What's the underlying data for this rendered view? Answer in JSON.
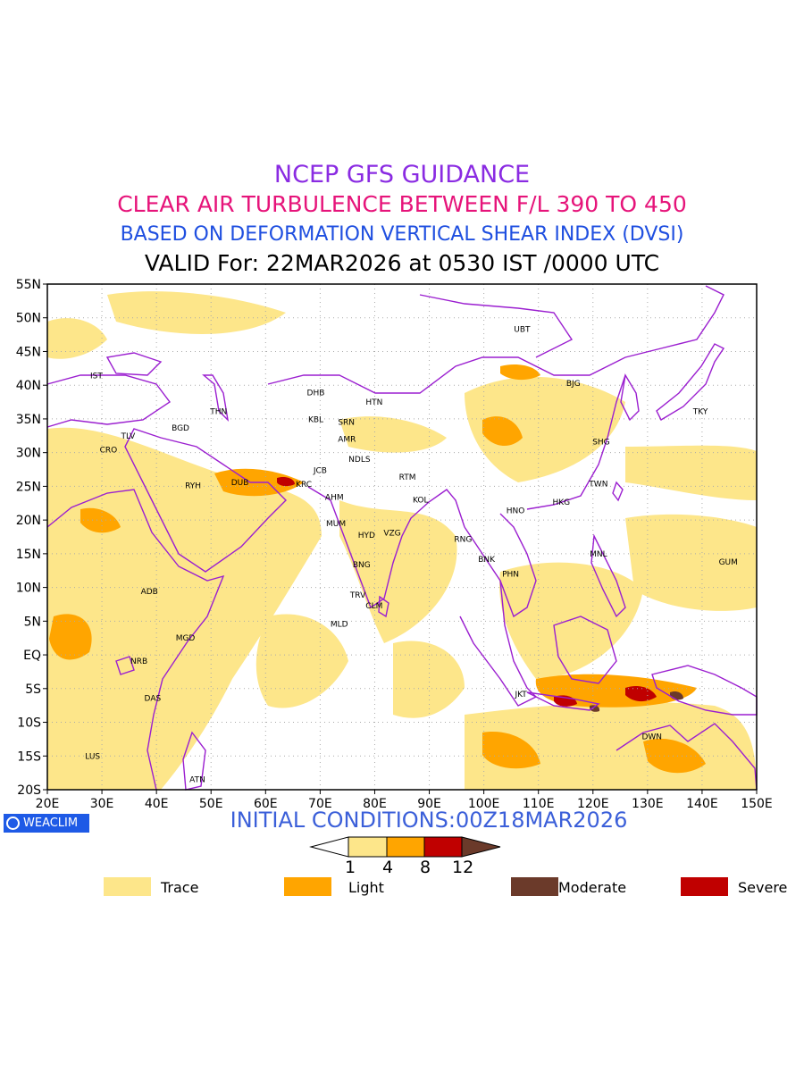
{
  "titles": {
    "line1": "NCEP GFS GUIDANCE",
    "line2": "CLEAR AIR TURBULENCE BETWEEN F/L 390 TO 450",
    "line3": "BASED ON DEFORMATION VERTICAL SHEAR INDEX (DVSI)",
    "line4": "VALID For: 22MAR2026 at 0530 IST /0000 UTC"
  },
  "map": {
    "lon_range": [
      20,
      150
    ],
    "lat_range": [
      -20,
      55
    ],
    "lat_labels": [
      "55N",
      "50N",
      "45N",
      "40N",
      "35N",
      "30N",
      "25N",
      "20N",
      "15N",
      "10N",
      "5N",
      "EQ",
      "5S",
      "10S",
      "15S",
      "20S"
    ],
    "lon_labels": [
      "20E",
      "30E",
      "40E",
      "50E",
      "60E",
      "70E",
      "80E",
      "90E",
      "100E",
      "110E",
      "120E",
      "130E",
      "140E",
      "150E"
    ],
    "stations": [
      "UBT",
      "IST",
      "DHB",
      "HTN",
      "BJG",
      "TKY",
      "THN",
      "KBL",
      "SRN",
      "TLV",
      "BGD",
      "AMR",
      "CRO",
      "JCB",
      "NDLS",
      "SHG",
      "RTM",
      "RYH",
      "DUB",
      "KRC",
      "AHM",
      "TWN",
      "KOL",
      "HNO",
      "HKG",
      "MUM",
      "HYD",
      "VZG",
      "RNG",
      "MNL",
      "BNK",
      "GUM",
      "BNG",
      "PHN",
      "ADB",
      "TRV",
      "CLM",
      "MLD",
      "MGD",
      "NRB",
      "JKT",
      "DAS",
      "DWN",
      "LUS",
      "ATN"
    ],
    "colors": {
      "trace": "#fde68a",
      "light": "#ffa500",
      "severe": "#c00000",
      "moderate": "#6b3a2a",
      "boundary": "#9b1fd0"
    }
  },
  "footer": {
    "initial_conditions": "INITIAL CONDITIONS:00Z18MAR2026",
    "brand": "WEACLIM"
  },
  "colorbar": {
    "ticks": [
      "1",
      "4",
      "8",
      "12"
    ]
  },
  "legend": {
    "trace": "Trace",
    "light": "Light",
    "moderate": "Moderate",
    "severe": "Severe"
  }
}
